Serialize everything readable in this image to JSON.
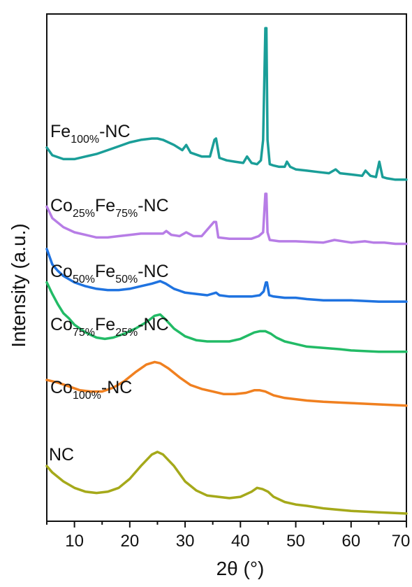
{
  "chart_data": {
    "type": "line",
    "xlabel": "2θ (°)",
    "ylabel": "Intensity (a.u.)",
    "xlim": [
      5,
      70
    ],
    "x_ticks": [
      10,
      20,
      30,
      40,
      50,
      60,
      70
    ],
    "x_tick_labels": [
      "10",
      "20",
      "30",
      "40",
      "50",
      "60",
      "70"
    ],
    "y_ticks": [],
    "y_units": "arbitrary (stacked offsets)",
    "grid": false,
    "legend": "none (series labeled inline above each trace)",
    "series": [
      {
        "name": "Fe100%-NC",
        "label": {
          "base": "Fe",
          "sub": "100%",
          "suffix": "-NC"
        },
        "color": "#1a9e98",
        "x": [
          5,
          6,
          8,
          10,
          12,
          14,
          16,
          18,
          20,
          22,
          24,
          25,
          26,
          28,
          29.5,
          30.2,
          31,
          33,
          34.5,
          35.3,
          35.6,
          36.2,
          37.5,
          39,
          40.5,
          41.2,
          42,
          43,
          43.7,
          44.1,
          44.5,
          44.7,
          44.9,
          45.3,
          46,
          47,
          48,
          48.4,
          49,
          50,
          52,
          54,
          56,
          57.2,
          58,
          60,
          62,
          62.6,
          63.5,
          64.5,
          65.1,
          65.7,
          66.5,
          68,
          70
        ],
        "values": [
          2.86,
          2.8,
          2.77,
          2.77,
          2.79,
          2.81,
          2.84,
          2.87,
          2.9,
          2.92,
          2.93,
          2.93,
          2.92,
          2.88,
          2.84,
          2.88,
          2.82,
          2.79,
          2.79,
          2.92,
          2.93,
          2.78,
          2.76,
          2.75,
          2.74,
          2.79,
          2.74,
          2.73,
          2.76,
          2.92,
          3.79,
          3.79,
          2.92,
          2.73,
          2.72,
          2.71,
          2.71,
          2.75,
          2.71,
          2.69,
          2.68,
          2.67,
          2.66,
          2.69,
          2.66,
          2.65,
          2.64,
          2.68,
          2.64,
          2.63,
          2.75,
          2.63,
          2.62,
          2.61,
          2.61
        ]
      },
      {
        "name": "Co25%Fe75%-NC",
        "label": {
          "parts": [
            [
              "Co",
              "25%"
            ],
            [
              "Fe",
              "75%"
            ]
          ],
          "suffix": "-NC"
        },
        "color": "#b77de6",
        "x": [
          5,
          6,
          8,
          10,
          12,
          14,
          16,
          18,
          20,
          22,
          24,
          26,
          26.6,
          27.5,
          29,
          30.2,
          31.5,
          33,
          35.2,
          35.6,
          36,
          38,
          40,
          42,
          43.3,
          44.1,
          44.5,
          44.7,
          44.9,
          45.3,
          47,
          50,
          55,
          57,
          60,
          62.5,
          64,
          65,
          66,
          68,
          70
        ],
        "values": [
          2.4,
          2.31,
          2.24,
          2.2,
          2.18,
          2.16,
          2.16,
          2.17,
          2.18,
          2.19,
          2.19,
          2.19,
          2.21,
          2.18,
          2.17,
          2.2,
          2.17,
          2.17,
          2.28,
          2.28,
          2.16,
          2.15,
          2.15,
          2.15,
          2.17,
          2.2,
          2.5,
          2.5,
          2.2,
          2.14,
          2.13,
          2.13,
          2.12,
          2.14,
          2.12,
          2.13,
          2.12,
          2.12,
          2.12,
          2.11,
          2.11
        ]
      },
      {
        "name": "Co50%Fe50%-NC",
        "label": {
          "parts": [
            [
              "Co",
              "50%"
            ],
            [
              "Fe",
              "50%"
            ]
          ],
          "suffix": "-NC"
        },
        "color": "#1f73e0",
        "x": [
          5,
          6,
          7,
          8,
          10,
          12,
          14,
          16,
          18,
          20,
          22,
          24,
          25.5,
          26.5,
          28,
          30,
          32,
          34,
          35.6,
          36.2,
          38,
          40,
          42,
          43.5,
          44.2,
          44.6,
          44.8,
          45.2,
          46,
          48,
          50,
          52,
          55,
          60,
          65,
          70
        ],
        "values": [
          2.07,
          1.95,
          1.9,
          1.86,
          1.81,
          1.78,
          1.76,
          1.75,
          1.75,
          1.76,
          1.78,
          1.8,
          1.82,
          1.8,
          1.76,
          1.73,
          1.72,
          1.71,
          1.73,
          1.71,
          1.7,
          1.7,
          1.7,
          1.71,
          1.74,
          1.81,
          1.81,
          1.71,
          1.7,
          1.69,
          1.69,
          1.68,
          1.67,
          1.67,
          1.66,
          1.66
        ]
      },
      {
        "name": "Co75%Fe25%-NC",
        "label": {
          "parts": [
            [
              "Co",
              "75%"
            ],
            [
              "Fe",
              "25%"
            ]
          ],
          "suffix": "-NC"
        },
        "color": "#22bb66",
        "x": [
          5,
          6,
          7,
          8,
          9,
          10,
          12,
          14,
          15.5,
          17,
          19,
          21,
          23,
          24.5,
          25.5,
          26.5,
          28,
          30,
          32,
          34,
          36,
          38,
          40,
          41.5,
          42.5,
          43.5,
          44.5,
          45.5,
          46.5,
          48,
          50,
          52,
          55,
          58,
          60,
          65,
          70
        ],
        "values": [
          1.81,
          1.72,
          1.64,
          1.57,
          1.53,
          1.48,
          1.42,
          1.38,
          1.37,
          1.38,
          1.41,
          1.45,
          1.5,
          1.55,
          1.56,
          1.52,
          1.45,
          1.39,
          1.36,
          1.35,
          1.35,
          1.35,
          1.37,
          1.4,
          1.42,
          1.43,
          1.43,
          1.41,
          1.38,
          1.35,
          1.33,
          1.31,
          1.3,
          1.29,
          1.28,
          1.27,
          1.27
        ]
      },
      {
        "name": "Co100%-NC",
        "label": {
          "base": "Co",
          "sub": "100%",
          "suffix": "-NC"
        },
        "color": "#f08020",
        "x": [
          5,
          7,
          9,
          11,
          13,
          15,
          17,
          19,
          21,
          23,
          24.5,
          25.5,
          27,
          29,
          31,
          33,
          35,
          37,
          39,
          41,
          42.5,
          43.5,
          44.5,
          46,
          48,
          50,
          52,
          55,
          60,
          65,
          70
        ],
        "values": [
          1.05,
          1.03,
          1.0,
          0.97,
          0.96,
          0.96,
          0.99,
          1.04,
          1.11,
          1.17,
          1.19,
          1.18,
          1.14,
          1.07,
          1.01,
          0.98,
          0.96,
          0.94,
          0.94,
          0.95,
          0.97,
          0.97,
          0.96,
          0.93,
          0.91,
          0.9,
          0.89,
          0.88,
          0.87,
          0.86,
          0.85
        ]
      },
      {
        "name": "NC",
        "label": {
          "base": "NC",
          "sub": "",
          "suffix": ""
        },
        "color": "#a5a91a",
        "x": [
          5,
          6,
          8,
          10,
          12,
          14,
          16,
          18,
          20,
          22,
          24,
          25,
          26,
          28,
          30,
          32,
          34,
          36,
          38,
          40,
          42,
          43,
          44,
          45,
          46,
          48,
          50,
          52,
          55,
          60,
          65,
          70
        ],
        "values": [
          0.38,
          0.33,
          0.26,
          0.21,
          0.18,
          0.17,
          0.18,
          0.21,
          0.28,
          0.38,
          0.47,
          0.49,
          0.47,
          0.38,
          0.26,
          0.19,
          0.15,
          0.14,
          0.13,
          0.14,
          0.18,
          0.21,
          0.2,
          0.18,
          0.14,
          0.1,
          0.08,
          0.07,
          0.05,
          0.03,
          0.02,
          0.01
        ]
      }
    ]
  }
}
